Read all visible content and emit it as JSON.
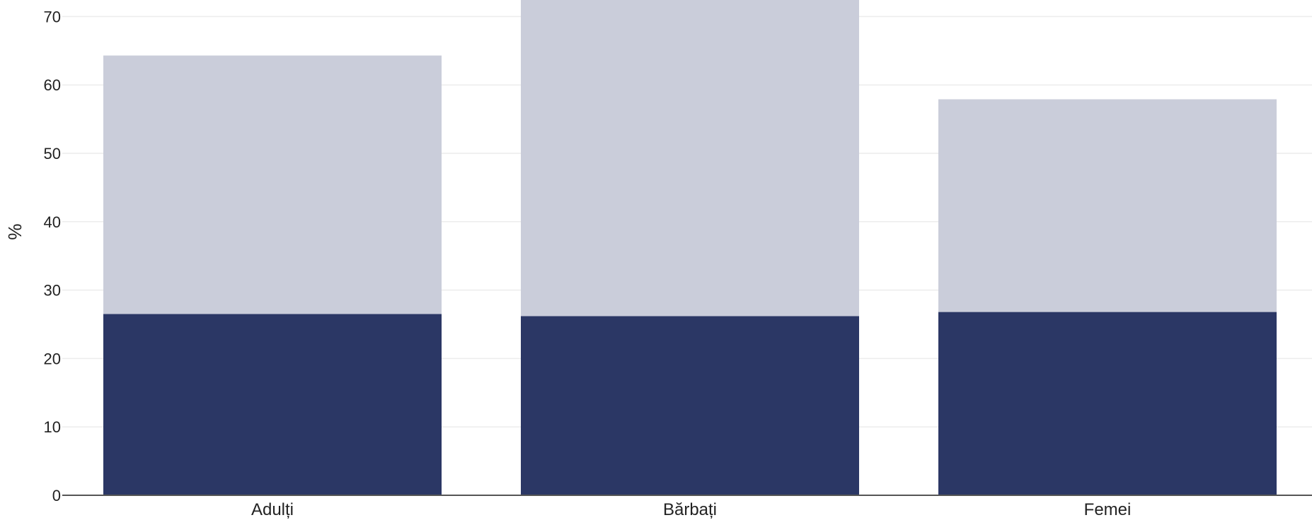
{
  "chart_data": {
    "type": "bar",
    "stacked": true,
    "categories": [
      "Adulți",
      "Bărbați",
      "Femei"
    ],
    "series": [
      {
        "color": "#2b3765",
        "values": [
          26.5,
          26.2,
          26.8
        ]
      },
      {
        "color": "#cacdda",
        "values": [
          37.8,
          48.3,
          31.1
        ]
      }
    ],
    "totals": [
      64.3,
      74.5,
      57.9
    ],
    "title": "",
    "xlabel": "",
    "ylabel": "%",
    "yticks": [
      0,
      10,
      20,
      30,
      40,
      50,
      60,
      70
    ],
    "ylim": [
      0,
      72.3
    ],
    "grid": true,
    "colors": {
      "gridline": "#ececec",
      "axis": "#555555",
      "text": "#222222"
    }
  }
}
